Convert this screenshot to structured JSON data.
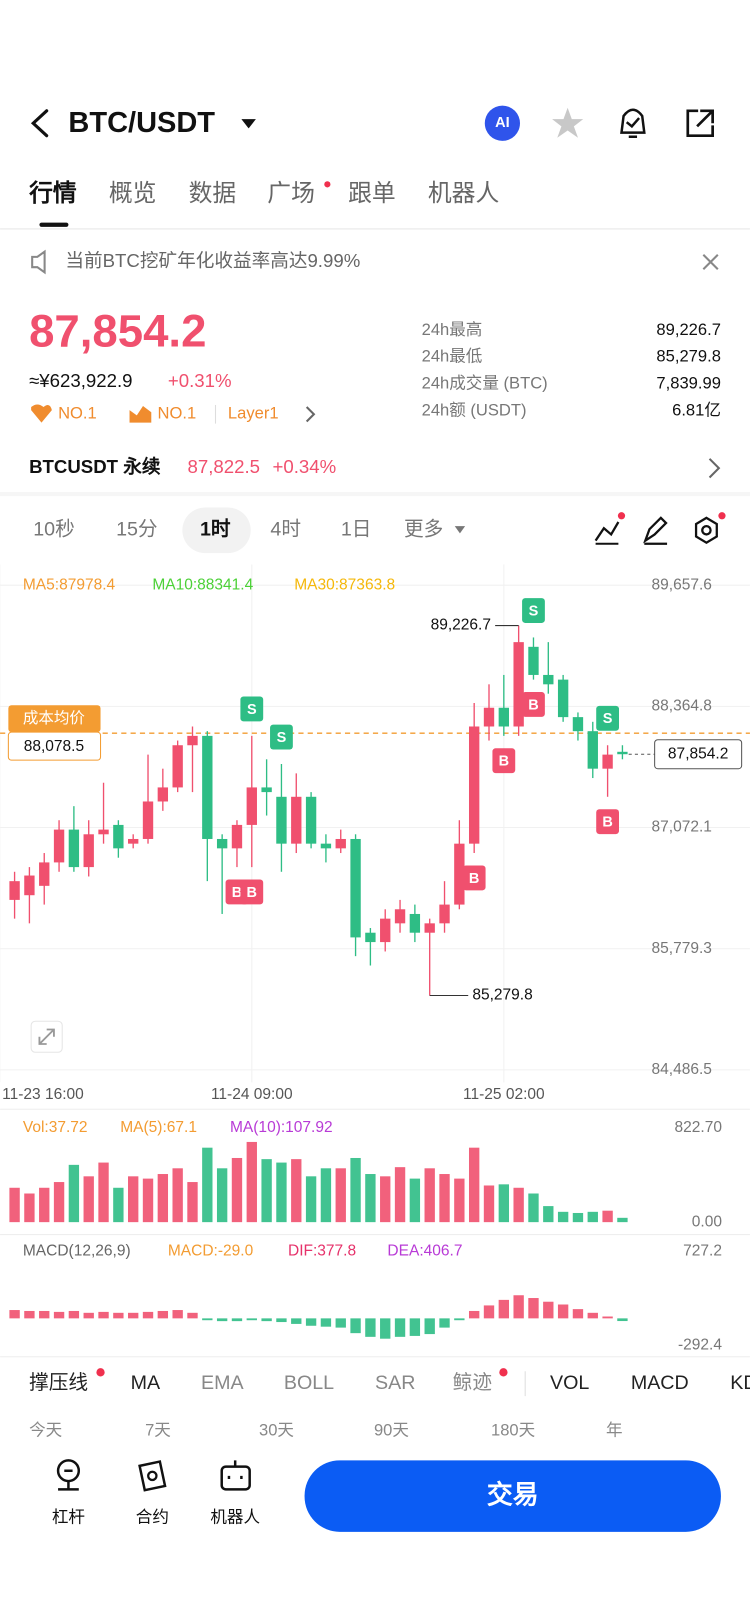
{
  "header": {
    "pair": "BTC/USDT",
    "ai": "AI"
  },
  "tabs": [
    {
      "label": "行情",
      "active": true
    },
    {
      "label": "概览"
    },
    {
      "label": "数据"
    },
    {
      "label": "广场",
      "dot": true
    },
    {
      "label": "跟单"
    },
    {
      "label": "机器人"
    }
  ],
  "notice": "当前BTC挖矿年化收益率高达9.99%",
  "price": {
    "last": "87,854.2",
    "cny": "≈¥623,922.9",
    "change": "+0.31%",
    "badges": [
      "NO.1",
      "NO.1",
      "Layer1"
    ]
  },
  "stats": [
    {
      "label": "24h最高",
      "value": "89,226.7"
    },
    {
      "label": "24h最低",
      "value": "85,279.8"
    },
    {
      "label": "24h成交量 (BTC)",
      "value": "7,839.99"
    },
    {
      "label": "24h额 (USDT)",
      "value": "6.81亿"
    }
  ],
  "perp": {
    "name": "BTCUSDT 永续",
    "price": "87,822.5",
    "change": "+0.34%"
  },
  "intervals": [
    {
      "label": "10秒"
    },
    {
      "label": "15分"
    },
    {
      "label": "1时",
      "active": true
    },
    {
      "label": "4时"
    },
    {
      "label": "1日"
    },
    {
      "label": "更多"
    }
  ],
  "chart_data": {
    "type": "candlestick",
    "ma_labels": [
      {
        "text": "MA5:87978.4",
        "color": "#f39c32"
      },
      {
        "text": "MA10:88341.4",
        "color": "#4cd137"
      },
      {
        "text": "MA30:87363.8",
        "color": "#f5b80a"
      }
    ],
    "x": [
      0,
      1,
      2,
      3,
      4,
      5,
      6,
      7,
      8,
      9,
      10,
      11,
      12,
      13,
      14,
      15,
      16,
      17,
      18,
      19,
      20,
      21,
      22,
      23,
      24,
      25,
      26,
      27,
      28,
      29,
      30,
      31,
      32,
      33,
      34,
      35,
      36,
      37,
      38,
      39,
      40,
      41
    ],
    "open": [
      86300,
      86350,
      86450,
      86700,
      87050,
      86650,
      87000,
      87100,
      86900,
      86950,
      87350,
      87500,
      87950,
      88050,
      86950,
      86850,
      87100,
      87500,
      87400,
      86900,
      87400,
      86900,
      86850,
      86950,
      85950,
      85850,
      86050,
      86150,
      85950,
      86050,
      86250,
      86900,
      88150,
      88350,
      88150,
      89000,
      88700,
      88650,
      88250,
      88100,
      87700,
      87880
    ],
    "high": [
      86600,
      86650,
      86800,
      87150,
      87300,
      87150,
      87550,
      87150,
      87000,
      87850,
      87700,
      88000,
      88150,
      88100,
      87000,
      87150,
      88050,
      87800,
      87750,
      87650,
      87450,
      87000,
      87050,
      87000,
      86000,
      86200,
      86300,
      86250,
      86100,
      86500,
      87150,
      88400,
      88600,
      88700,
      89226.7,
      89100,
      89050,
      88700,
      88300,
      88200,
      87950,
      87950
    ],
    "low": [
      86100,
      86050,
      86250,
      86600,
      86600,
      86550,
      86900,
      86750,
      86850,
      86900,
      87250,
      87450,
      87450,
      86500,
      86150,
      86650,
      86650,
      87200,
      86600,
      86800,
      86850,
      86700,
      86800,
      85700,
      85600,
      85750,
      85950,
      85850,
      85279.8,
      85950,
      86200,
      86800,
      88000,
      88050,
      88050,
      88650,
      88500,
      88200,
      88000,
      87600,
      87400,
      87800
    ],
    "close": [
      86500,
      86560,
      86700,
      87050,
      86650,
      87000,
      87050,
      86850,
      86950,
      87350,
      87500,
      87950,
      88050,
      86950,
      86850,
      87100,
      87500,
      87450,
      86900,
      87400,
      86900,
      86850,
      86950,
      85900,
      85850,
      86100,
      86200,
      85950,
      86050,
      86250,
      86900,
      88150,
      88350,
      88150,
      89050,
      88700,
      88600,
      88250,
      88100,
      87700,
      87850,
      87854.2
    ],
    "colors": {
      "up": "#f0506e",
      "down": "#2ebd85"
    },
    "xlim": [
      -1,
      49.6
    ],
    "ylim": [
      84486.5,
      89657.6
    ],
    "xticks": [
      {
        "value": -1,
        "label": "11-23 16:00"
      },
      {
        "value": 16,
        "label": "11-24 09:00"
      },
      {
        "value": 33,
        "label": "11-25 02:00"
      }
    ],
    "yticks": [
      {
        "value": 89657.6,
        "label": "89,657.6"
      },
      {
        "value": 88364.8,
        "label": "88,364.8"
      },
      {
        "value": 87072.1,
        "label": "87,072.1"
      },
      {
        "value": 85779.3,
        "label": "85,779.3"
      },
      {
        "value": 84486.5,
        "label": "84,486.5"
      }
    ],
    "grid": true,
    "cost": {
      "label": "成本均价",
      "value": 88078.5,
      "value_label": "88,078.5"
    },
    "last": {
      "value": 87854.2,
      "value_label": "87,854.2"
    },
    "high_mark": {
      "x": 34,
      "value": 89226.7,
      "value_label": "89,226.7"
    },
    "low_mark": {
      "x": 28,
      "value": 85279.8,
      "value_label": "85,279.8"
    },
    "trades": [
      {
        "label": "S",
        "x": 16
      },
      {
        "label": "S",
        "x": 18
      },
      {
        "label": "S",
        "x": 35
      },
      {
        "label": "S",
        "x": 40
      },
      {
        "label": "B",
        "x": 15
      },
      {
        "label": "B",
        "x": 16
      },
      {
        "label": "B",
        "x": 31
      },
      {
        "label": "B",
        "x": 33
      },
      {
        "label": "B",
        "x": 35
      },
      {
        "label": "B",
        "x": 40
      }
    ],
    "volume": {
      "labels": [
        {
          "text": "Vol:37.72",
          "color": "#f39c32"
        },
        {
          "text": "MA(5):67.1",
          "color": "#f39c32"
        },
        {
          "text": "MA(10):107.92",
          "color": "#b83ad6"
        }
      ],
      "values": [
        300,
        250,
        300,
        350,
        500,
        400,
        520,
        300,
        400,
        380,
        420,
        470,
        350,
        650,
        470,
        560,
        700,
        550,
        520,
        550,
        400,
        470,
        470,
        560,
        420,
        400,
        480,
        380,
        470,
        420,
        380,
        650,
        320,
        330,
        300,
        250,
        140,
        90,
        80,
        90,
        100,
        37.72
      ],
      "ylim": [
        0,
        822.7
      ],
      "yticks": [
        {
          "value": 822.7,
          "label": "822.70"
        },
        {
          "value": 0,
          "label": "0.00"
        }
      ]
    },
    "macd": {
      "labels": [
        {
          "text": "MACD(12,26,9)",
          "color": "#666"
        },
        {
          "text": "MACD:-29.0",
          "color": "#f39c32"
        },
        {
          "text": "DIF:377.8",
          "color": "#e6316a"
        },
        {
          "text": "DEA:406.7",
          "color": "#b83ad6"
        }
      ],
      "values": [
        90,
        80,
        80,
        70,
        80,
        60,
        70,
        60,
        60,
        70,
        80,
        90,
        60,
        -20,
        -30,
        -30,
        -20,
        -30,
        -40,
        -60,
        -80,
        -90,
        -100,
        -160,
        -200,
        -220,
        -200,
        -190,
        -170,
        -100,
        -20,
        80,
        140,
        200,
        250,
        220,
        180,
        150,
        100,
        60,
        20,
        -29
      ],
      "ylim": [
        -292.4,
        727.2
      ],
      "yticks": [
        {
          "value": 727.2,
          "label": "727.2"
        },
        {
          "value": -292.4,
          "label": "-292.4"
        }
      ]
    }
  },
  "indicators": [
    {
      "label": "撑压线",
      "active": true,
      "dot": true
    },
    {
      "label": "MA",
      "active": true
    },
    {
      "label": "EMA"
    },
    {
      "label": "BOLL"
    },
    {
      "label": "SAR"
    },
    {
      "label": "鲸迹",
      "dot": true
    },
    {
      "label": "VOL",
      "active": true
    },
    {
      "label": "MACD",
      "active": true
    },
    {
      "label": "KD",
      "active": true
    }
  ],
  "ranges": [
    "今天",
    "7天",
    "30天",
    "90天",
    "180天",
    "年"
  ],
  "nav": [
    "杠杆",
    "合约",
    "机器人"
  ],
  "trade": "交易"
}
